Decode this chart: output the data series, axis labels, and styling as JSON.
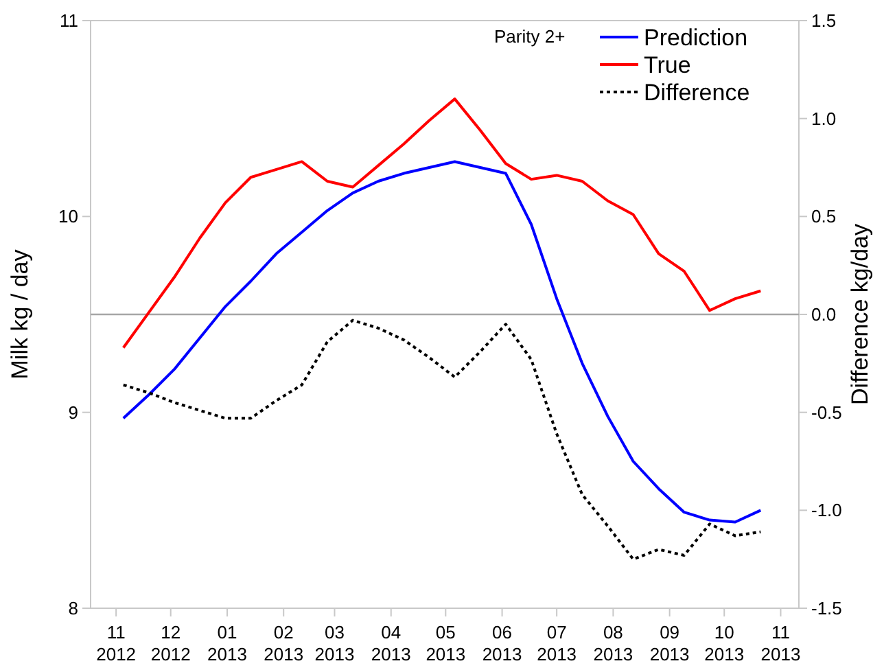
{
  "chart_data": {
    "type": "line",
    "ylabel": "Milk kg / day",
    "y2label": "Difference kg/day",
    "legend_title": "Parity 2+",
    "legend": "top right",
    "grid": false,
    "x": [
      "2012-11-05",
      "2012-11-19",
      "2012-12-03",
      "2012-12-17",
      "2012-12-31",
      "2013-01-14",
      "2013-01-28",
      "2013-02-11",
      "2013-02-25",
      "2013-03-11",
      "2013-03-25",
      "2013-04-08",
      "2013-04-22",
      "2013-05-06",
      "2013-05-20",
      "2013-06-03",
      "2013-06-17",
      "2013-07-01",
      "2013-07-15",
      "2013-07-29",
      "2013-08-12",
      "2013-08-26",
      "2013-09-09",
      "2013-09-23",
      "2013-10-07",
      "2013-10-21"
    ],
    "xlim": [
      "2012-10-18",
      "2013-11-11"
    ],
    "xticks": [
      {
        "value": "2012-11-01",
        "label": "11\n2012"
      },
      {
        "value": "2012-12-01",
        "label": "12\n2012"
      },
      {
        "value": "2013-01-01",
        "label": "01\n2013"
      },
      {
        "value": "2013-02-01",
        "label": "02\n2013"
      },
      {
        "value": "2013-03-01",
        "label": "03\n2013"
      },
      {
        "value": "2013-04-01",
        "label": "04\n2013"
      },
      {
        "value": "2013-05-01",
        "label": "05\n2013"
      },
      {
        "value": "2013-06-01",
        "label": "06\n2013"
      },
      {
        "value": "2013-07-01",
        "label": "07\n2013"
      },
      {
        "value": "2013-08-01",
        "label": "08\n2013"
      },
      {
        "value": "2013-09-01",
        "label": "09\n2013"
      },
      {
        "value": "2013-10-01",
        "label": "10\n2013"
      },
      {
        "value": "2013-11-01",
        "label": "11\n2013"
      }
    ],
    "ylim": [
      8,
      11
    ],
    "yticks": [
      8,
      9,
      10,
      11
    ],
    "y2lim": [
      -1.5,
      1.5
    ],
    "y2ticks": [
      -1.5,
      {
        "value": -1,
        "label": "-1.0"
      },
      -0.5,
      {
        "value": 0,
        "label": "0.0"
      },
      0.5,
      {
        "value": 1,
        "label": "1.0"
      },
      1.5
    ],
    "ref_lines": [
      {
        "axis": "y2",
        "value": 0,
        "color": "#a6a6a6"
      }
    ],
    "series": [
      {
        "name": "Prediction",
        "color": "#0000ff",
        "line_style": "solid",
        "values": [
          8.97,
          9.09,
          9.22,
          9.38,
          9.54,
          9.67,
          9.81,
          9.92,
          10.03,
          10.12,
          10.18,
          10.22,
          10.25,
          10.28,
          10.25,
          10.22,
          9.96,
          9.58,
          9.25,
          8.98,
          8.75,
          8.61,
          8.49,
          8.45,
          8.44,
          8.5
        ]
      },
      {
        "name": "True",
        "color": "#ff0000",
        "line_style": "solid",
        "values": [
          9.33,
          9.51,
          9.69,
          9.89,
          10.07,
          10.2,
          10.24,
          10.28,
          10.18,
          10.15,
          10.26,
          10.37,
          10.49,
          10.6,
          10.44,
          10.27,
          10.19,
          10.21,
          10.18,
          10.08,
          10.01,
          9.81,
          9.72,
          9.52,
          9.58,
          9.62
        ]
      },
      {
        "name": "Difference",
        "color": "#000000",
        "line_style": "dotted",
        "axis": "y2",
        "values": [
          -0.36,
          -0.4,
          -0.45,
          -0.49,
          -0.53,
          -0.53,
          -0.44,
          -0.36,
          -0.14,
          -0.03,
          -0.07,
          -0.13,
          -0.22,
          -0.32,
          -0.19,
          -0.05,
          -0.23,
          -0.61,
          -0.92,
          -1.08,
          -1.25,
          -1.2,
          -1.23,
          -1.07,
          -1.13,
          -1.11
        ]
      }
    ]
  }
}
